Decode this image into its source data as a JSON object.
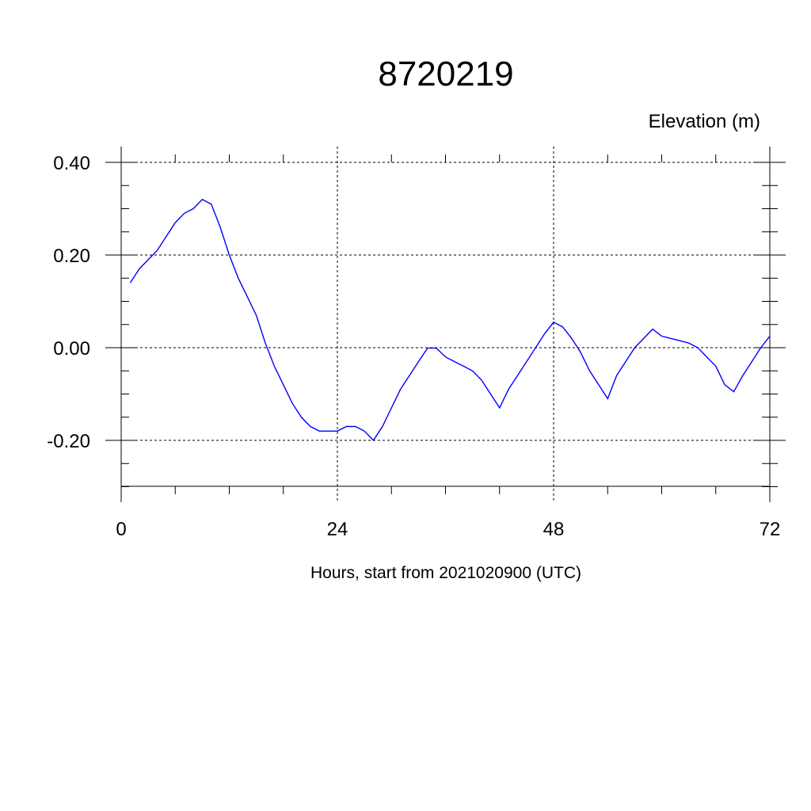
{
  "chart_data": {
    "type": "line",
    "title": "8720219",
    "ylabel": "Elevation (m)",
    "xlabel": "Hours, start from 2021020900 (UTC)",
    "xlim": [
      0,
      72
    ],
    "ylim": [
      -0.3,
      0.4
    ],
    "x_ticks": [
      0,
      24,
      48,
      72
    ],
    "x_tick_labels": [
      "0",
      "24",
      "48",
      "72"
    ],
    "y_ticks": [
      0.4,
      0.2,
      0.0,
      -0.2
    ],
    "y_tick_labels": [
      "0.40",
      "0.20",
      "0.00",
      "-0.20"
    ],
    "grid": true,
    "line_color": "#0000ff",
    "series": [
      {
        "x": [
          1,
          2,
          3,
          4,
          5,
          6,
          7,
          8,
          9,
          10,
          11,
          12,
          13,
          14,
          15,
          16,
          17,
          18,
          19,
          20,
          21,
          22,
          23,
          24,
          25,
          26,
          27,
          28,
          29,
          30,
          31,
          32,
          33,
          34,
          35,
          36,
          37,
          38,
          39,
          40,
          41,
          42,
          43,
          44,
          45,
          46,
          47,
          48,
          49,
          50,
          51,
          52,
          53,
          54,
          55,
          56,
          57,
          58,
          59,
          60,
          61,
          62,
          63,
          64,
          65,
          66,
          67,
          68,
          69,
          70,
          71,
          72
        ],
        "values": [
          0.14,
          0.17,
          0.19,
          0.21,
          0.24,
          0.27,
          0.29,
          0.3,
          0.32,
          0.31,
          0.26,
          0.2,
          0.15,
          0.11,
          0.07,
          0.01,
          -0.04,
          -0.08,
          -0.12,
          -0.15,
          -0.17,
          -0.18,
          -0.18,
          -0.18,
          -0.17,
          -0.17,
          -0.18,
          -0.2,
          -0.17,
          -0.13,
          -0.09,
          -0.06,
          -0.03,
          -0.001,
          -0.001,
          -0.02,
          -0.03,
          -0.04,
          -0.05,
          -0.07,
          -0.1,
          -0.13,
          -0.09,
          -0.06,
          -0.03,
          0.0,
          0.03,
          0.055,
          0.045,
          0.02,
          -0.01,
          -0.05,
          -0.08,
          -0.11,
          -0.06,
          -0.03,
          0.0,
          0.02,
          0.04,
          0.025,
          0.02,
          0.015,
          0.01,
          0.0,
          -0.02,
          -0.04,
          -0.08,
          -0.095,
          -0.06,
          -0.03,
          0.0,
          0.025
        ]
      }
    ]
  }
}
